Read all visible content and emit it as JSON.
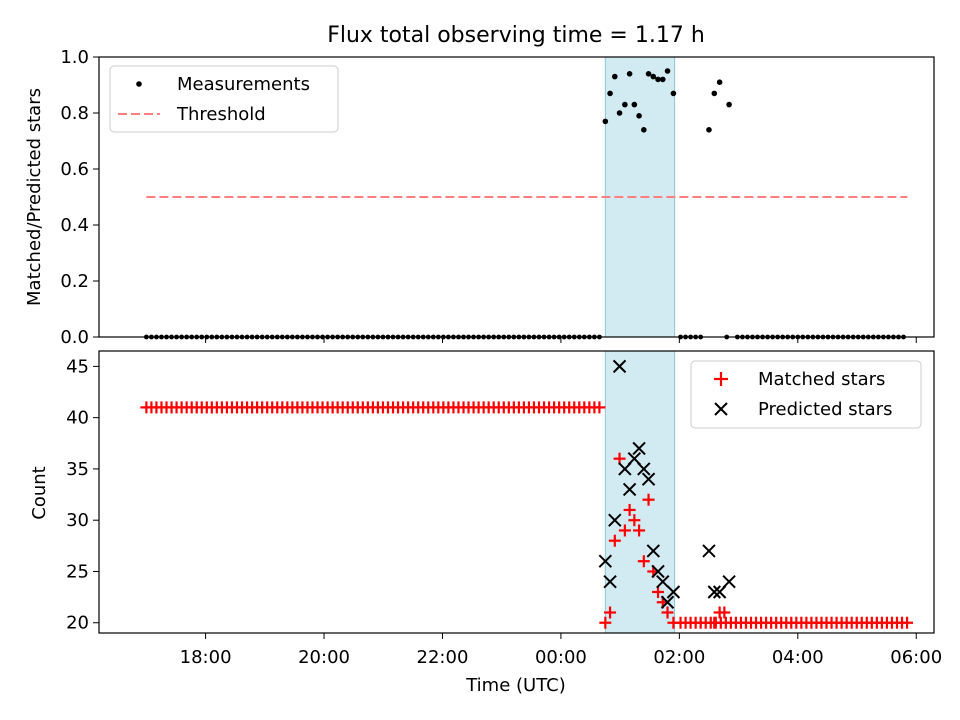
{
  "figure": {
    "title": "Flux total observing time = 1.17 h"
  },
  "chart_data": [
    {
      "type": "scatter",
      "panel": "top",
      "ylabel": "Matched/Predicted stars",
      "ylim": [
        0,
        1.0
      ],
      "yticks": [
        "0.0",
        "0.2",
        "0.4",
        "0.6",
        "0.8",
        "1.0"
      ],
      "ytick_values": [
        0.0,
        0.2,
        0.4,
        0.6,
        0.8,
        1.0
      ],
      "shaded_interval_hours": [
        0.75,
        1.92
      ],
      "colors": {
        "measurements": "#000000",
        "threshold": "#ff7f7f",
        "shade": "#add8e6"
      },
      "series": [
        {
          "name": "Measurements",
          "points": [
            [
              0.75,
              0.77
            ],
            [
              0.83,
              0.87
            ],
            [
              0.91,
              0.93
            ],
            [
              0.99,
              0.8
            ],
            [
              1.08,
              0.83
            ],
            [
              1.16,
              0.94
            ],
            [
              1.24,
              0.83
            ],
            [
              1.32,
              0.79
            ],
            [
              1.4,
              0.74
            ],
            [
              1.48,
              0.94
            ],
            [
              1.56,
              0.93
            ],
            [
              1.64,
              0.92
            ],
            [
              1.72,
              0.92
            ],
            [
              1.8,
              0.95
            ],
            [
              1.9,
              0.87
            ],
            [
              2.5,
              0.74
            ],
            [
              2.59,
              0.87
            ],
            [
              2.68,
              0.91
            ],
            [
              2.84,
              0.83
            ]
          ],
          "zero_runs": [
            [
              -7.0,
              0.72,
              0.085
            ],
            [
              2.02,
              2.38,
              0.085
            ],
            [
              2.8,
              2.8,
              0.085
            ],
            [
              2.98,
              5.85,
              0.085
            ]
          ]
        },
        {
          "name": "Threshold",
          "x": [
            -7.0,
            5.85
          ],
          "y": [
            0.5,
            0.5
          ]
        }
      ]
    },
    {
      "type": "scatter",
      "panel": "bottom",
      "xlabel": "Time (UTC)",
      "ylabel": "Count",
      "ylim": [
        19,
        46.5
      ],
      "yticks": [
        "20",
        "25",
        "30",
        "35",
        "40",
        "45"
      ],
      "ytick_values": [
        20,
        25,
        30,
        35,
        40,
        45
      ],
      "xlim_hours": [
        -7.8,
        6.3
      ],
      "xtick_labels": [
        "18:00",
        "20:00",
        "22:00",
        "00:00",
        "02:00",
        "04:00",
        "06:00"
      ],
      "xtick_values_hours": [
        -6,
        -4,
        -2,
        0,
        2,
        4,
        6
      ],
      "colors": {
        "matched": "#ff0000",
        "predicted": "#000000"
      },
      "series": [
        {
          "name": "Matched stars",
          "runs": [
            [
              -7.0,
              0.72,
              0.085,
              41
            ],
            [
              2.02,
              5.85,
              0.085,
              20
            ]
          ],
          "points": [
            [
              0.75,
              20
            ],
            [
              0.83,
              21
            ],
            [
              0.91,
              28
            ],
            [
              0.99,
              36
            ],
            [
              1.08,
              29
            ],
            [
              1.16,
              31
            ],
            [
              1.24,
              30
            ],
            [
              1.32,
              29
            ],
            [
              1.4,
              26
            ],
            [
              1.48,
              32
            ],
            [
              1.56,
              25
            ],
            [
              1.64,
              23
            ],
            [
              1.72,
              22
            ],
            [
              1.8,
              21
            ],
            [
              1.9,
              20
            ],
            [
              2.59,
              20
            ],
            [
              2.68,
              21
            ],
            [
              2.76,
              21
            ]
          ]
        },
        {
          "name": "Predicted stars",
          "points": [
            [
              0.75,
              26
            ],
            [
              0.83,
              24
            ],
            [
              0.91,
              30
            ],
            [
              0.99,
              45
            ],
            [
              1.08,
              35
            ],
            [
              1.16,
              33
            ],
            [
              1.24,
              36
            ],
            [
              1.32,
              37
            ],
            [
              1.4,
              35
            ],
            [
              1.48,
              34
            ],
            [
              1.56,
              27
            ],
            [
              1.64,
              25
            ],
            [
              1.72,
              24
            ],
            [
              1.8,
              22
            ],
            [
              1.9,
              23
            ],
            [
              2.5,
              27
            ],
            [
              2.59,
              23
            ],
            [
              2.68,
              23
            ],
            [
              2.84,
              24
            ]
          ]
        }
      ]
    }
  ]
}
